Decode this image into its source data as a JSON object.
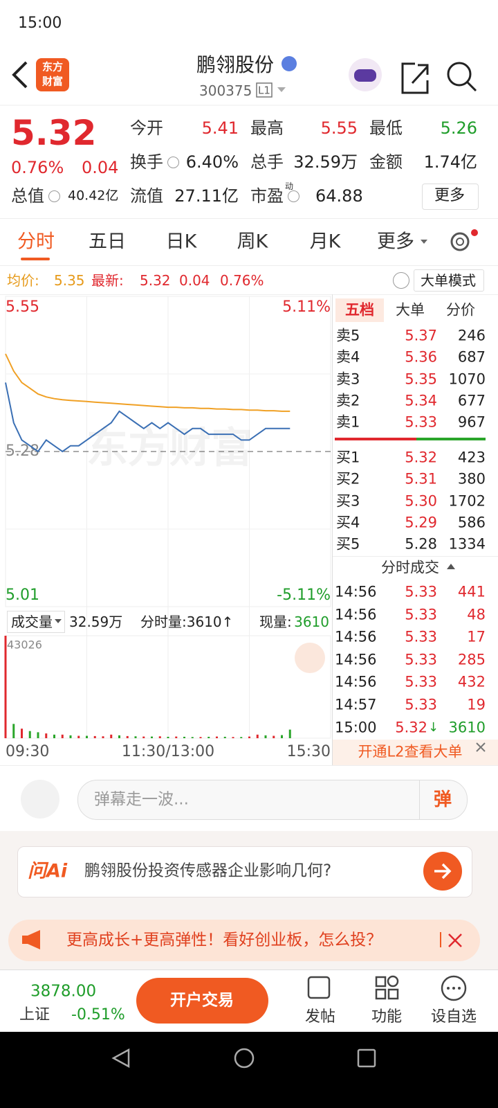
{
  "status_bar": {
    "time": "15:00"
  },
  "header": {
    "logo": [
      "东方",
      "财富"
    ],
    "title": "鹏翎股份",
    "code": "300375",
    "level": "L1"
  },
  "quote": {
    "price": "5.32",
    "change_pct": "0.76%",
    "change": "0.04",
    "fields": [
      {
        "label": "今开",
        "value": "5.41"
      },
      {
        "label": "最高",
        "value": "5.55"
      },
      {
        "label": "最低",
        "value": "5.26"
      },
      {
        "label": "换手",
        "value": "6.40%"
      },
      {
        "label": "总手",
        "value": "32.59万"
      },
      {
        "label": "金额",
        "value": "1.74亿"
      },
      {
        "label": "总值",
        "value": "40.42亿"
      },
      {
        "label": "流值",
        "value": "27.11亿"
      },
      {
        "label": "市盈",
        "superscript": "动",
        "value": "64.88"
      }
    ],
    "more": "更多"
  },
  "tabs": [
    "分时",
    "五日",
    "日K",
    "周K",
    "月K",
    "更多"
  ],
  "info": {
    "avg_label": "均价:",
    "avg": "5.35",
    "latest_label": "最新:",
    "latest": "5.32",
    "change": "0.04",
    "pct": "0.76%",
    "mode": "大单模式"
  },
  "chart_data": [
    {
      "type": "line",
      "watermark": "东方财富",
      "x": [
        0,
        6,
        12,
        18,
        24,
        30,
        36,
        42,
        48,
        54,
        60,
        66,
        72,
        78,
        84,
        90,
        96,
        102,
        108,
        114,
        120,
        126,
        132,
        138,
        144,
        150,
        156,
        162,
        168,
        174,
        180,
        186,
        192,
        198,
        204,
        210
      ],
      "xlim": [
        0,
        240
      ],
      "ylim": [
        5.01,
        5.55
      ],
      "yticks": [
        5.55,
        5.28,
        5.01
      ],
      "reference": 5.28,
      "y2lim": [
        -5.11,
        5.11
      ],
      "y2ticks": [
        {
          "value": 5.11,
          "label": "5.11%"
        },
        {
          "value": -5.11,
          "label": "-5.11%"
        }
      ],
      "series": [
        {
          "color": "#3a6fb4",
          "values": [
            5.4,
            5.33,
            5.3,
            5.29,
            5.28,
            5.3,
            5.29,
            5.28,
            5.29,
            5.29,
            5.3,
            5.31,
            5.32,
            5.33,
            5.35,
            5.34,
            5.33,
            5.32,
            5.33,
            5.32,
            5.33,
            5.32,
            5.31,
            5.32,
            5.32,
            5.31,
            5.31,
            5.31,
            5.31,
            5.3,
            5.3,
            5.31,
            5.32,
            5.32,
            5.32,
            5.32
          ]
        },
        {
          "color": "#f0a024",
          "values": [
            5.45,
            5.42,
            5.4,
            5.39,
            5.38,
            5.375,
            5.372,
            5.37,
            5.369,
            5.368,
            5.367,
            5.366,
            5.365,
            5.364,
            5.363,
            5.362,
            5.361,
            5.36,
            5.359,
            5.358,
            5.357,
            5.357,
            5.356,
            5.356,
            5.355,
            5.355,
            5.354,
            5.354,
            5.353,
            5.353,
            5.352,
            5.352,
            5.351,
            5.351,
            5.35,
            5.35
          ]
        }
      ]
    },
    {
      "type": "bar",
      "x": [
        0,
        6,
        12,
        18,
        24,
        30,
        36,
        42,
        48,
        54,
        60,
        66,
        72,
        78,
        84,
        90,
        96,
        102,
        108,
        114,
        120,
        126,
        132,
        138,
        144,
        150,
        156,
        162,
        168,
        174,
        180,
        186,
        192,
        198,
        204,
        210
      ],
      "xlim": [
        0,
        240
      ],
      "ylim": [
        0,
        43026
      ],
      "yticks": [
        43026
      ],
      "xticks": [
        {
          "value": 0,
          "label": "09:30"
        },
        {
          "value": 120,
          "label": "11:30/13:00"
        },
        {
          "value": 240,
          "label": "15:30"
        }
      ],
      "values": [
        43026,
        6000,
        4000,
        3000,
        2500,
        2000,
        1500,
        1500,
        1200,
        1000,
        1000,
        900,
        800,
        1500,
        1200,
        900,
        800,
        700,
        700,
        800,
        600,
        700,
        600,
        500,
        500,
        600,
        700,
        600,
        500,
        500,
        700,
        1500,
        1200,
        1000,
        1300,
        3610
      ],
      "colors": [
        "#e0282e",
        "#2aa52a",
        "#e0282e",
        "#2aa52a",
        "#2aa52a",
        "#e0282e",
        "#2aa52a",
        "#e0282e",
        "#2aa52a",
        "#e0282e",
        "#2aa52a",
        "#e0282e",
        "#e0282e",
        "#e0282e",
        "#2aa52a",
        "#e0282e",
        "#2aa52a",
        "#e0282e",
        "#2aa52a",
        "#e0282e",
        "#2aa52a",
        "#e0282e",
        "#2aa52a",
        "#2aa52a",
        "#e0282e",
        "#2aa52a",
        "#e0282e",
        "#2aa52a",
        "#e0282e",
        "#2aa52a",
        "#e0282e",
        "#e0282e",
        "#2aa52a",
        "#e0282e",
        "#2aa52a",
        "#2aa52a"
      ]
    }
  ],
  "volume_header": {
    "label": "成交量",
    "total": "32.59万",
    "period": "分时量:3610↑",
    "current_label": "现量:",
    "current": "3610"
  },
  "order_book": {
    "tabs": [
      "五档",
      "大单",
      "分价"
    ],
    "asks": [
      {
        "label": "卖5",
        "price": "5.37",
        "volume": "246"
      },
      {
        "label": "卖4",
        "price": "5.36",
        "volume": "687"
      },
      {
        "label": "卖3",
        "price": "5.35",
        "volume": "1070"
      },
      {
        "label": "卖2",
        "price": "5.34",
        "volume": "677"
      },
      {
        "label": "卖1",
        "price": "5.33",
        "volume": "967"
      }
    ],
    "bids": [
      {
        "label": "买1",
        "price": "5.32",
        "volume": "423"
      },
      {
        "label": "买2",
        "price": "5.31",
        "volume": "380"
      },
      {
        "label": "买3",
        "price": "5.30",
        "volume": "1702"
      },
      {
        "label": "买4",
        "price": "5.29",
        "volume": "586"
      },
      {
        "label": "买5",
        "price": "5.28",
        "volume": "1334"
      }
    ]
  },
  "trades": {
    "title": "分时成交",
    "rows": [
      {
        "time": "14:56",
        "price": "5.33",
        "volume": "441"
      },
      {
        "time": "14:56",
        "price": "5.33",
        "volume": "48"
      },
      {
        "time": "14:56",
        "price": "5.33",
        "volume": "17"
      },
      {
        "time": "14:56",
        "price": "5.33",
        "volume": "285"
      },
      {
        "time": "14:56",
        "price": "5.33",
        "volume": "432"
      },
      {
        "time": "14:57",
        "price": "5.33",
        "volume": "19"
      },
      {
        "time": "15:00",
        "price": "5.32",
        "direction": "↓",
        "volume": "3610"
      }
    ]
  },
  "l2_link": "开通L2查看大单",
  "comment": {
    "placeholder": "弹幕走一波...",
    "button": "弹"
  },
  "ai": {
    "brand": "问Ai",
    "question": "鹏翎股份投资传感器企业影响几何?"
  },
  "promo": "更高成长+更高弹性！看好创业板，怎么投？",
  "bottom_bar": {
    "index_value": "3878.00",
    "index_name": "上证",
    "index_change": "-0.51%",
    "trade_button": "开户交易",
    "nav": [
      "发帖",
      "功能",
      "设自选"
    ]
  }
}
